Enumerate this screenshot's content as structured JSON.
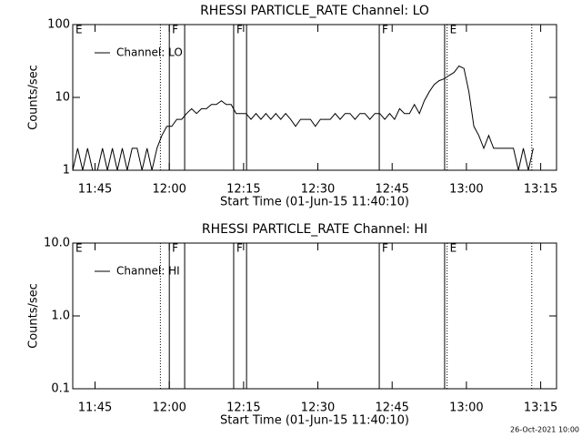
{
  "chart_data": [
    {
      "type": "line",
      "title": "RHESSI PARTICLE_RATE Channel: LO",
      "xlabel": "Start Time (01-Jun-15 11:40:10)",
      "ylabel": "Counts/sec",
      "log_y": true,
      "ylim": [
        1,
        100
      ],
      "yticks": [
        1,
        10,
        100
      ],
      "xlim": [
        700.5,
        798.2
      ],
      "xticks": [
        {
          "value": 705,
          "label": "11:45"
        },
        {
          "value": 720,
          "label": "12:00"
        },
        {
          "value": 735,
          "label": "12:15"
        },
        {
          "value": 750,
          "label": "12:30"
        },
        {
          "value": 765,
          "label": "12:45"
        },
        {
          "value": 780,
          "label": "13:00"
        },
        {
          "value": 795,
          "label": "13:15"
        }
      ],
      "legend": "upper left",
      "markers": [
        {
          "x": 700.5,
          "style": "dotted",
          "label": "E"
        },
        {
          "x": 718.2,
          "style": "dotted"
        },
        {
          "x": 720,
          "style": "solid",
          "label": "F"
        },
        {
          "x": 723.1,
          "style": "solid"
        },
        {
          "x": 733,
          "style": "solid",
          "label": "F"
        },
        {
          "x": 735.6,
          "style": "solid"
        },
        {
          "x": 762.4,
          "style": "solid",
          "label": "F"
        },
        {
          "x": 775.6,
          "style": "solid"
        },
        {
          "x": 776.1,
          "style": "dotted",
          "label": "E"
        },
        {
          "x": 793.2,
          "style": "dotted"
        }
      ],
      "series": [
        {
          "name": "Channel: LO",
          "color": "#000000",
          "x": [
            700.5,
            701.5,
            702.5,
            703.5,
            704.5,
            705.5,
            706.5,
            707.5,
            708.5,
            709.5,
            710.5,
            711.5,
            712.5,
            713.5,
            714.5,
            715.5,
            716.5,
            717.5,
            718.5,
            719.5,
            720.5,
            721.5,
            722.5,
            723.5,
            724.5,
            725.5,
            726.5,
            727.5,
            728.5,
            729.5,
            730.5,
            731.5,
            732.5,
            733.5,
            734.5,
            735.5,
            736.5,
            737.5,
            738.5,
            739.5,
            740.5,
            741.5,
            742.5,
            743.5,
            744.5,
            745.5,
            746.5,
            747.5,
            748.5,
            749.5,
            750.5,
            751.5,
            752.5,
            753.5,
            754.5,
            755.5,
            756.5,
            757.5,
            758.5,
            759.5,
            760.5,
            761.5,
            762.5,
            763.5,
            764.5,
            765.5,
            766.5,
            767.5,
            768.5,
            769.5,
            770.5,
            771.5,
            772.5,
            773.5,
            774.5,
            775.5,
            776.5,
            777.5,
            778.5,
            779.5,
            780.5,
            781.5,
            782.5,
            783.5,
            784.5,
            785.5,
            786.5,
            787.5,
            788.5,
            789.5,
            790.5,
            791.5,
            792.5,
            793.5
          ],
          "values": [
            1,
            2,
            1,
            2,
            1,
            1,
            2,
            1,
            2,
            1,
            2,
            1,
            2,
            2,
            1,
            2,
            1,
            2,
            3,
            4,
            4,
            5,
            5,
            6,
            7,
            6,
            7,
            7,
            8,
            8,
            9,
            8,
            8,
            6,
            6,
            6,
            5,
            6,
            5,
            6,
            5,
            6,
            5,
            6,
            5,
            4,
            5,
            5,
            5,
            4,
            5,
            5,
            5,
            6,
            5,
            6,
            6,
            5,
            6,
            6,
            5,
            6,
            6,
            5,
            6,
            5,
            7,
            6,
            6,
            8,
            6,
            9,
            12,
            15,
            17,
            18,
            20,
            22,
            27,
            25,
            12,
            4,
            3,
            2,
            3,
            2,
            2,
            2,
            2,
            2,
            1,
            2,
            1,
            2
          ]
        }
      ]
    },
    {
      "type": "line",
      "title": "RHESSI PARTICLE_RATE Channel: HI",
      "xlabel": "Start Time (01-Jun-15 11:40:10)",
      "ylabel": "Counts/sec",
      "log_y": true,
      "ylim": [
        0.1,
        10
      ],
      "yticks": [
        {
          "value": 0.1,
          "label": "0.1"
        },
        {
          "value": 1,
          "label": "1.0"
        },
        {
          "value": 10,
          "label": "10.0"
        }
      ],
      "xlim": [
        700.5,
        798.2
      ],
      "xticks": [
        {
          "value": 705,
          "label": "11:45"
        },
        {
          "value": 720,
          "label": "12:00"
        },
        {
          "value": 735,
          "label": "12:15"
        },
        {
          "value": 750,
          "label": "12:30"
        },
        {
          "value": 765,
          "label": "12:45"
        },
        {
          "value": 780,
          "label": "13:00"
        },
        {
          "value": 795,
          "label": "13:15"
        }
      ],
      "legend": "upper left",
      "markers": [
        {
          "x": 700.5,
          "style": "dotted",
          "label": "E"
        },
        {
          "x": 718.2,
          "style": "dotted"
        },
        {
          "x": 720,
          "style": "solid",
          "label": "F"
        },
        {
          "x": 723.1,
          "style": "solid"
        },
        {
          "x": 733,
          "style": "solid",
          "label": "F"
        },
        {
          "x": 735.6,
          "style": "solid"
        },
        {
          "x": 762.4,
          "style": "solid",
          "label": "F"
        },
        {
          "x": 775.6,
          "style": "solid"
        },
        {
          "x": 776.1,
          "style": "dotted",
          "label": "E"
        },
        {
          "x": 793.2,
          "style": "dotted"
        }
      ],
      "series": [
        {
          "name": "Channel: HI",
          "color": "#000000",
          "x": [],
          "values": []
        }
      ]
    }
  ],
  "footer": "26-Oct-2021 10:00"
}
